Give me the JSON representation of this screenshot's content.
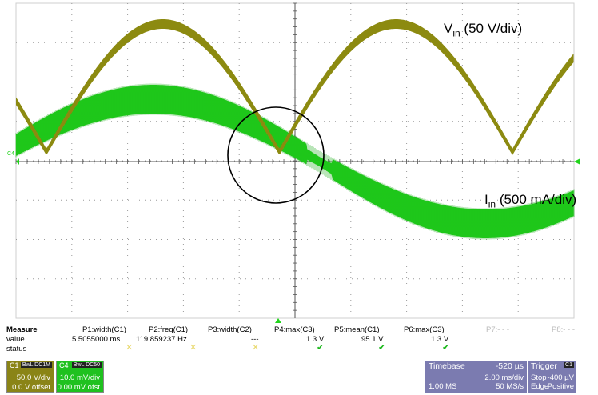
{
  "annotations": {
    "vin_main": "V",
    "vin_sub": "in",
    "vin_rest": "(50 V/div)",
    "iin_main": "I",
    "iin_sub": "in",
    "iin_rest": "(500 mA/div)"
  },
  "channel_marker": "C4",
  "measure": {
    "title": "Measure",
    "row_value": "value",
    "row_status": "status",
    "params": [
      {
        "label": "P1:width(C1)",
        "value": "5.5055000 ms",
        "status": "x"
      },
      {
        "label": "P2:freq(C1)",
        "value": "119.859237 Hz",
        "status": "x"
      },
      {
        "label": "P3:width(C2)",
        "value": "---",
        "status": "x"
      },
      {
        "label": "P4:max(C3)",
        "value": "1.3 V",
        "status": "check"
      },
      {
        "label": "P5:mean(C1)",
        "value": "95.1 V",
        "status": "check"
      },
      {
        "label": "P6:max(C3)",
        "value": "1.3 V",
        "status": "check"
      },
      {
        "label": "P7:- - -",
        "value": "",
        "status": ""
      },
      {
        "label": "P8:- - -",
        "value": "",
        "status": ""
      }
    ]
  },
  "channels": {
    "c1": {
      "name": "C1",
      "badge": "BwL DC1M",
      "scale": "50.0 V/div",
      "offset": "0.0 V offset",
      "color": "#8a8416"
    },
    "c4": {
      "name": "C4",
      "badge": "BwL DC50",
      "scale": "10.0 mV/div",
      "offset": "0.00 mV ofst",
      "color": "#1fc11f"
    }
  },
  "timebase": {
    "label": "Timebase",
    "delay": "-520 µs",
    "div": "2.00 ms/div",
    "points": "1.00 MS",
    "rate": "50 MS/s"
  },
  "trigger": {
    "label": "Trigger",
    "badge": "C1",
    "mode": "Stop",
    "level": "-400 µV",
    "type": "Edge",
    "slope": "Positive"
  },
  "colors": {
    "voltage": "#8c8a10",
    "current": "#22d41c",
    "grid_dot": "#9a9a9a"
  }
}
